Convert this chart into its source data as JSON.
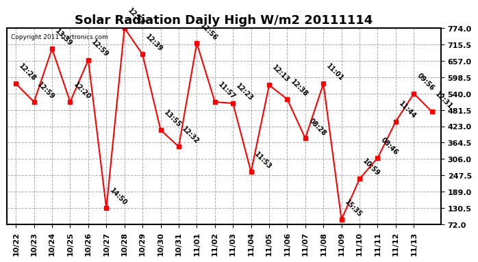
{
  "title": "Solar Radiation Daily High W/m2 20111114",
  "copyright": "Copyright 2011 Dartronics.com",
  "x_positions": [
    0,
    1,
    2,
    3,
    4,
    5,
    6,
    7,
    8,
    9,
    10,
    11,
    12,
    13,
    14,
    15,
    16,
    17,
    18,
    19,
    20,
    21,
    22,
    23
  ],
  "x_tick_labels": [
    "10/22",
    "10/23",
    "10/24",
    "10/25",
    "10/26",
    "10/27",
    "10/28",
    "10/29",
    "10/30",
    "10/31",
    "11/01",
    "11/02",
    "11/03",
    "11/04",
    "11/05",
    "11/06",
    "11/07",
    "11/08",
    "11/09",
    "11/10",
    "11/11",
    "11/12",
    "11/13"
  ],
  "x_tick_positions": [
    0,
    1,
    2,
    3,
    4,
    5,
    6,
    7,
    8,
    9,
    10,
    11,
    12,
    13,
    14,
    15,
    16,
    17,
    18,
    19,
    20,
    21,
    22
  ],
  "y_values": [
    575,
    510,
    700,
    510,
    660,
    130,
    774,
    680,
    410,
    350,
    720,
    510,
    505,
    260,
    570,
    520,
    380,
    575,
    90,
    235,
    310,
    440,
    540,
    475
  ],
  "point_labels": [
    "12:28",
    "12:59",
    "13:39",
    "12:20",
    "12:59",
    "14:50",
    "12:58",
    "12:39",
    "13:55",
    "12:32",
    "12:56",
    "11:57",
    "12:23",
    "11:53",
    "12:13",
    "12:38",
    "08:28",
    "11:01",
    "15:35",
    "10:59",
    "08:46",
    "11:44",
    "09:56",
    "12:31"
  ],
  "ylim": [
    72.0,
    774.0
  ],
  "yticks": [
    72.0,
    130.5,
    189.0,
    247.5,
    306.0,
    364.5,
    423.0,
    481.5,
    540.0,
    598.5,
    657.0,
    715.5,
    774.0
  ],
  "line_color": "#ff0000",
  "marker_color": "#ff0000",
  "background_color": "#ffffff",
  "grid_color": "#aaaaaa",
  "title_fontsize": 13,
  "tick_fontsize": 8,
  "annotation_fontsize": 7
}
